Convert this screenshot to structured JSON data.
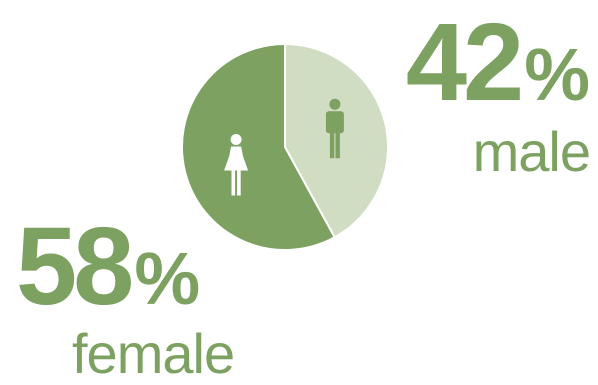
{
  "chart_data": {
    "type": "pie",
    "categories": [
      "male",
      "female"
    ],
    "values": [
      42,
      58
    ],
    "labels": [
      {
        "value": "42",
        "unit": "%",
        "label": "male"
      },
      {
        "value": "58",
        "unit": "%",
        "label": "female"
      }
    ],
    "colors": {
      "male": "#d0ddc3",
      "female": "#7ca160",
      "accent": "#7ca160",
      "icon": "#ffffff"
    },
    "icons": {
      "male": "male-person-icon",
      "female": "female-person-icon"
    }
  }
}
